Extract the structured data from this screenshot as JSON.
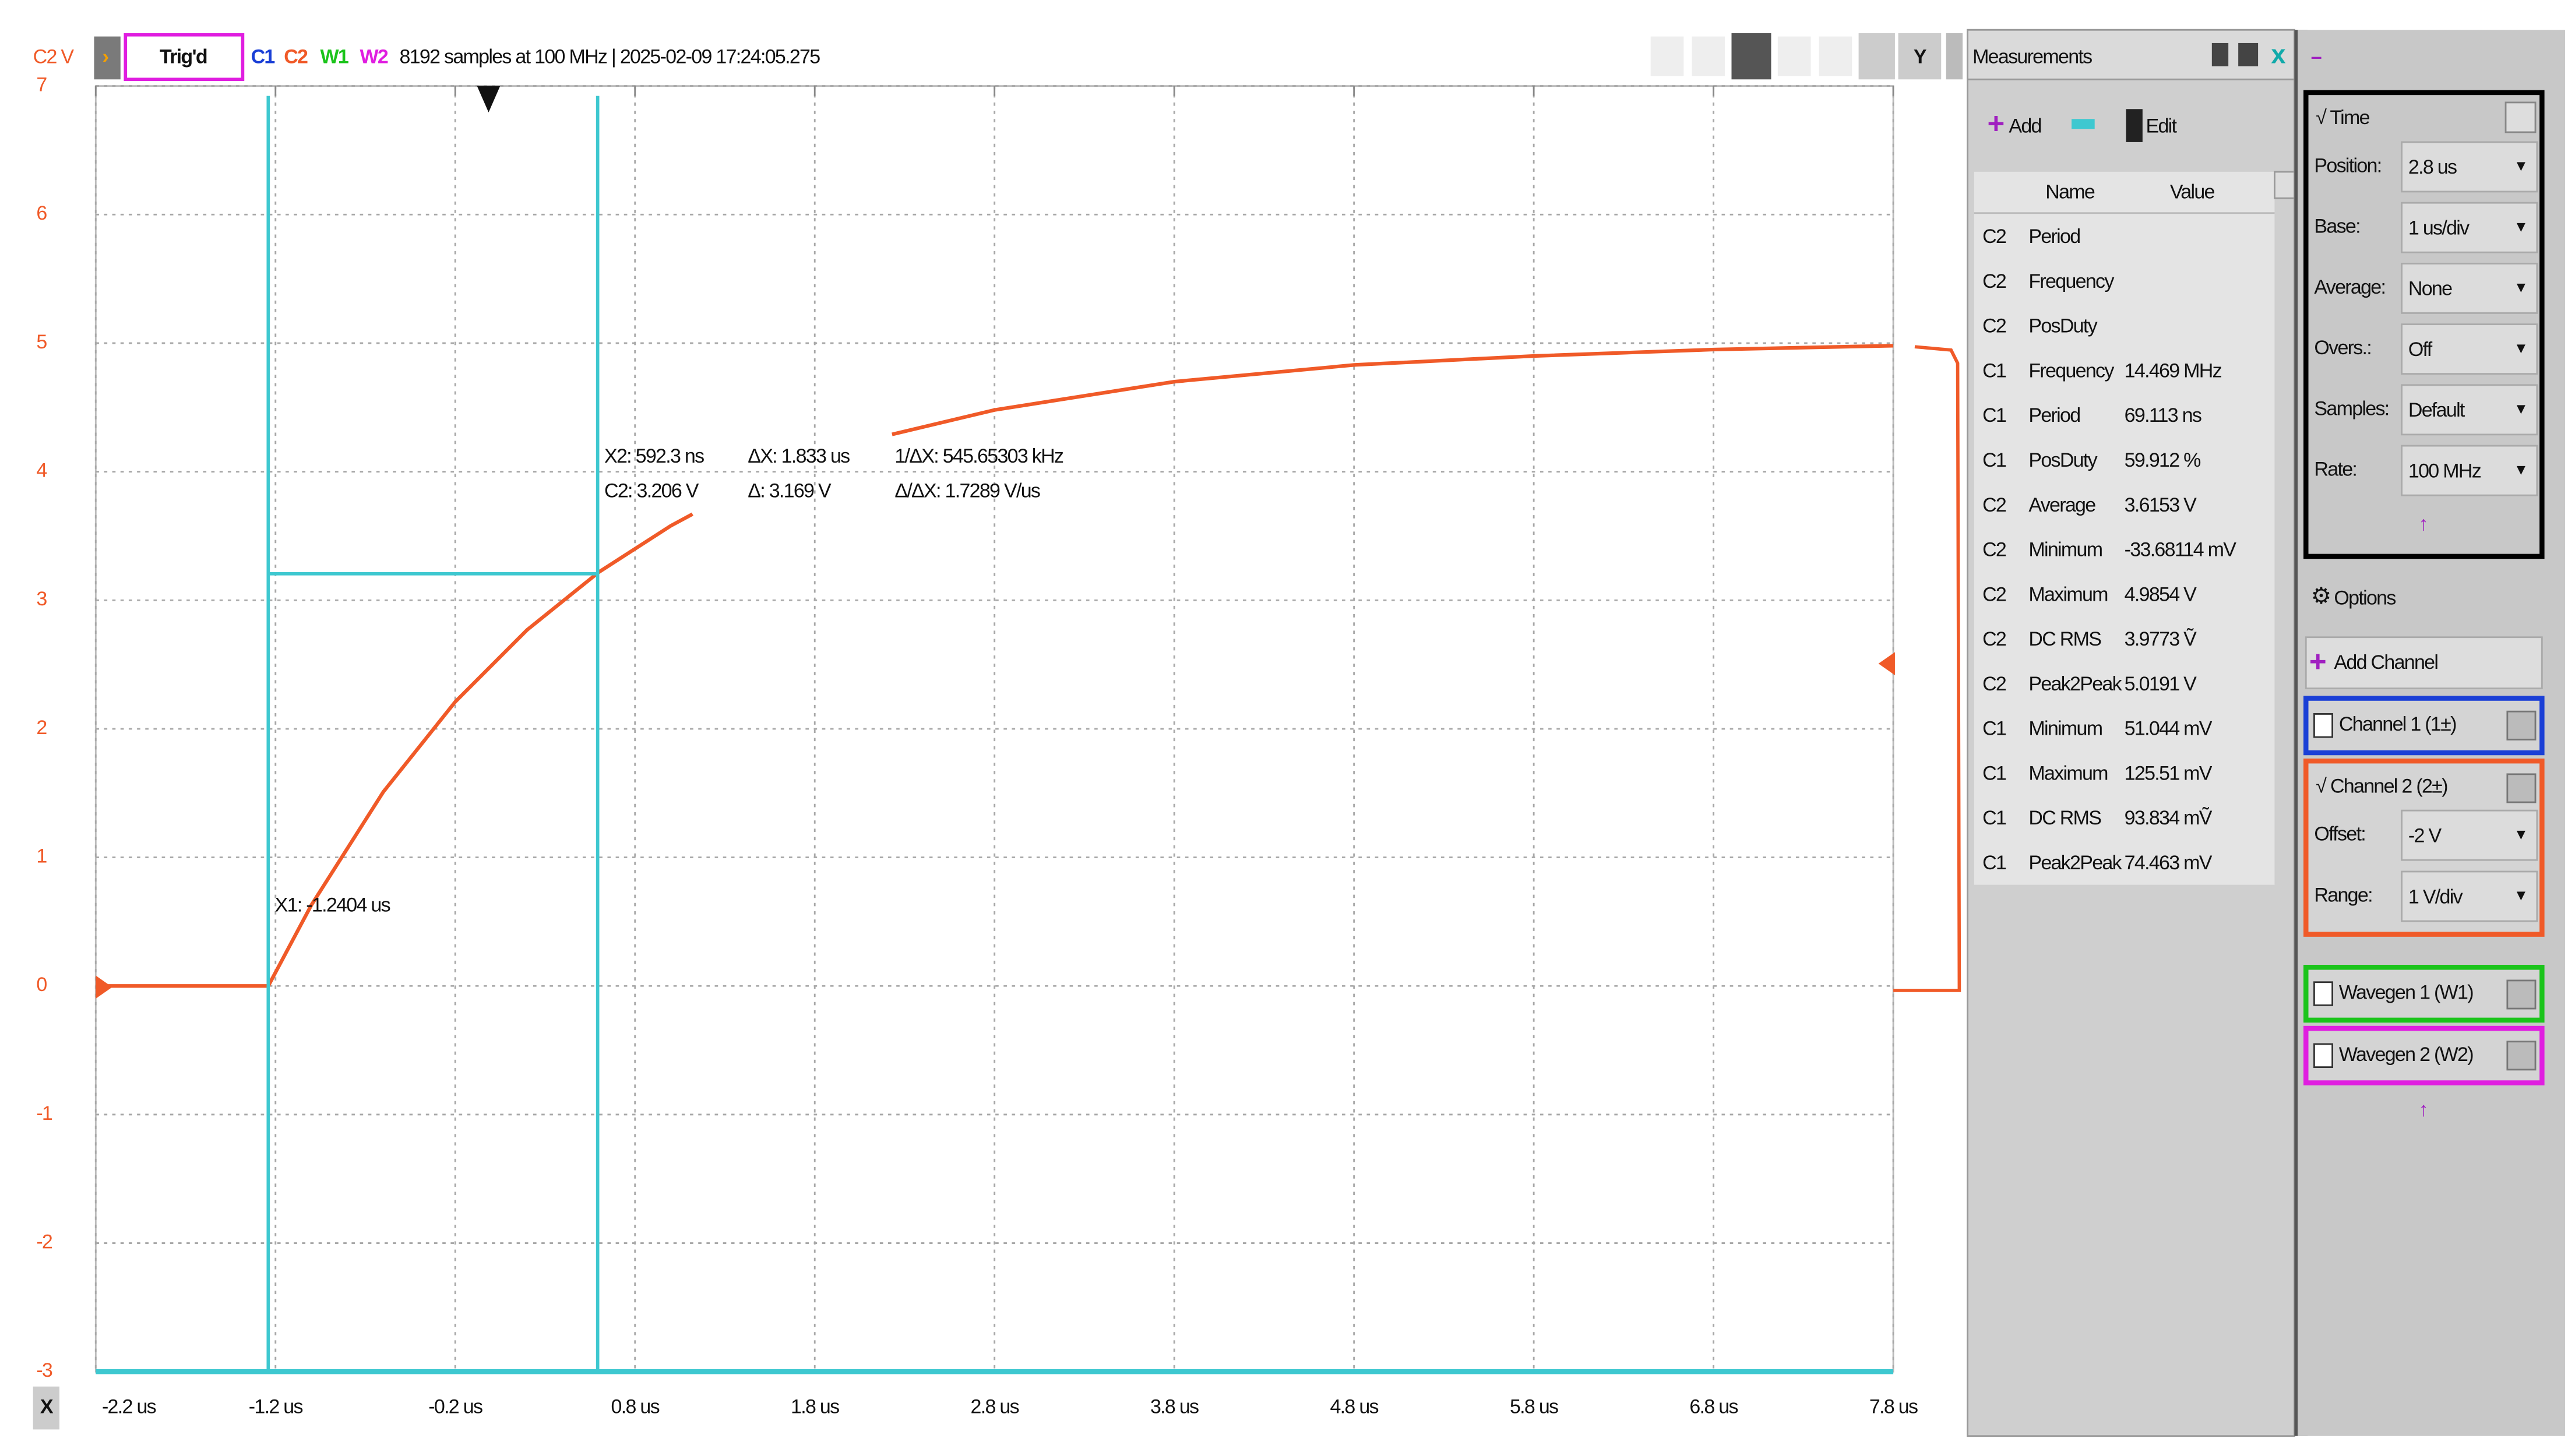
{
  "toolbar": {
    "trigger_status": "Trig'd",
    "channels": [
      {
        "label": "C1",
        "color": "#1a3fd6"
      },
      {
        "label": "C2",
        "color": "#f05a28"
      },
      {
        "label": "W1",
        "color": "#1bc41b"
      },
      {
        "label": "W2",
        "color": "#e01ee0"
      }
    ],
    "info": "8192 samples at 100 MHz | 2025-02-09 17:24:05.275",
    "x_button": "X"
  },
  "chart_data": {
    "type": "line",
    "y_axis_label": "C2 V",
    "x": [
      -2.2,
      -1.24,
      -1.0,
      -0.6,
      -0.2,
      0.2,
      0.6,
      1.0,
      1.12,
      1.7,
      2.23,
      2.8,
      3.8,
      4.8,
      5.8,
      6.8,
      7.8
    ],
    "series": [
      {
        "color": "#f05a28",
        "values": [
          0,
          0,
          0.63,
          1.51,
          2.21,
          2.77,
          3.22,
          3.58,
          3.67,
          null,
          4.29,
          4.48,
          4.7,
          4.83,
          4.9,
          4.95,
          4.98
        ]
      }
    ],
    "xlim": [
      -2.2,
      7.8
    ],
    "xticks": [
      {
        "value": -2.2,
        "label": "-2.2 us"
      },
      {
        "value": -1.2,
        "label": "-1.2 us"
      },
      {
        "value": -0.2,
        "label": "-0.2 us"
      },
      {
        "value": 0.8,
        "label": "0.8 us"
      },
      {
        "value": 1.8,
        "label": "1.8 us"
      },
      {
        "value": 2.8,
        "label": "2.8 us"
      },
      {
        "value": 3.8,
        "label": "3.8 us"
      },
      {
        "value": 4.8,
        "label": "4.8 us"
      },
      {
        "value": 5.8,
        "label": "5.8 us"
      },
      {
        "value": 6.8,
        "label": "6.8 us"
      },
      {
        "value": 7.8,
        "label": "7.8 us"
      }
    ],
    "ylim": [
      -3,
      7
    ],
    "yticks": [
      -3,
      -2,
      -1,
      0,
      1,
      2,
      3,
      4,
      5,
      6,
      7
    ],
    "grid": true,
    "cursor_color": "#3ec8d0",
    "vertical_cursors": [
      {
        "value": -1.2404,
        "label": "X1: -1.2404 us"
      },
      {
        "value": 0.5923,
        "label": "X2: 592.3 ns"
      }
    ],
    "horizontal_cursor": {
      "value": 3.206,
      "label": "C2: 3.206 V"
    },
    "cursor_readouts": [
      "ΔX: 1.833 us",
      "Δ: 3.169 V",
      "1/ΔX: 545.65303 kHz",
      "Δ/ΔX: 1.7289 V/us"
    ]
  },
  "measurements": {
    "title": "Measurements",
    "buttons": [
      "Add",
      "Edit"
    ],
    "columns": [
      "Name",
      "Value"
    ],
    "rows": [
      [
        "C2",
        "Period"
      ],
      [
        "C2",
        "Frequency"
      ],
      [
        "C2",
        "PosDuty"
      ],
      [
        "C1",
        "Frequency",
        "14.469 MHz"
      ],
      [
        "C1",
        "Period",
        "69.113 ns"
      ],
      [
        "C1",
        "PosDuty",
        "59.912 %"
      ],
      [
        "C2",
        "Average",
        "3.6153 V"
      ],
      [
        "C2",
        "Minimum",
        "-33.68114 mV"
      ],
      [
        "C2",
        "Maximum",
        "4.9854 V"
      ],
      [
        "C2",
        "DC RMS",
        "3.9773 Ṽ"
      ],
      [
        "C2",
        "Peak2Peak",
        "5.0191 V"
      ],
      [
        "C1",
        "Minimum",
        "51.044 mV"
      ],
      [
        "C1",
        "Maximum",
        "125.51 mV"
      ],
      [
        "C1",
        "DC RMS",
        "93.834 mṼ"
      ],
      [
        "C1",
        "Peak2Peak",
        "74.463 mV"
      ]
    ]
  },
  "settings": {
    "time": {
      "title": "√  Time",
      "fields": [
        [
          "Position:",
          "2.8 us"
        ],
        [
          "Base:",
          "1 us/div"
        ],
        [
          "Average:",
          "None"
        ],
        [
          "Overs.:",
          "Off"
        ],
        [
          "Samples:",
          "Default"
        ],
        [
          "Rate:",
          "100 MHz"
        ]
      ]
    },
    "options": "Options",
    "add_channel": "Add Channel",
    "channels": [
      {
        "label": "Channel 1 (1±)",
        "color": "#1a3fd6"
      },
      {
        "label": "√  Channel 2 (2±)",
        "color": "#f05a28",
        "fields": [
          [
            "Offset:",
            "-2 V"
          ],
          [
            "Range:",
            "1 V/div"
          ]
        ]
      },
      {
        "label": "Wavegen 1 (W1)",
        "color": "#1bc41b"
      },
      {
        "label": "Wavegen 2 (W2)",
        "color": "#e01ee0"
      }
    ]
  }
}
